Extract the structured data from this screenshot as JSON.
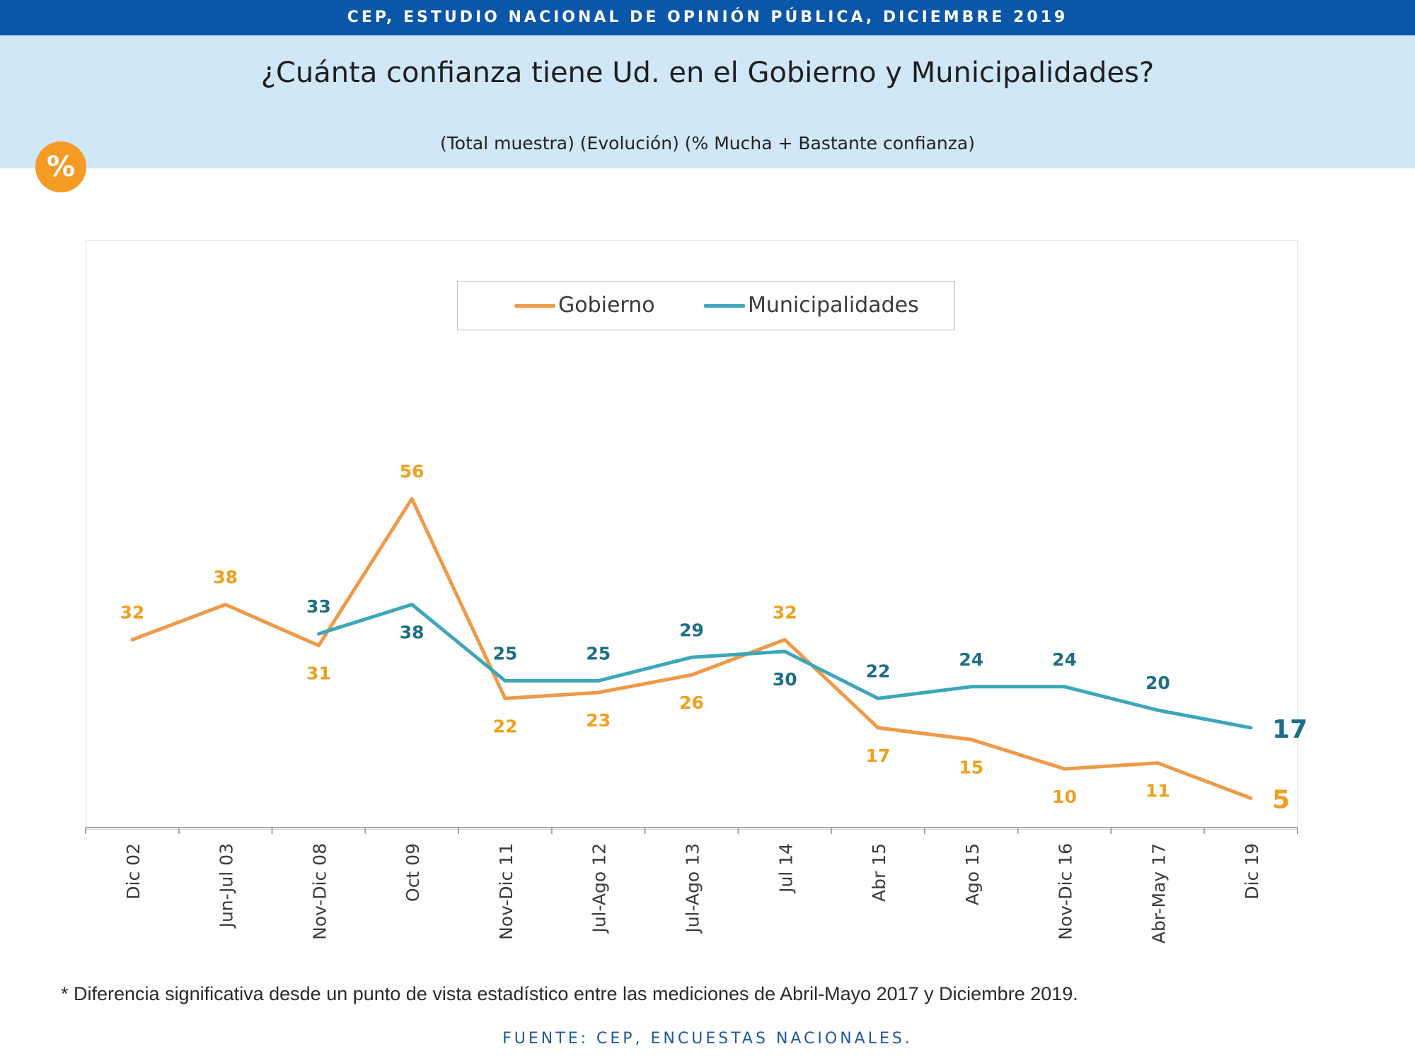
{
  "banner": "CEP, ESTUDIO NACIONAL DE OPINIÓN PÚBLICA, DICIEMBRE 2019",
  "title": "¿Cuánta confianza tiene Ud. en el Gobierno y Municipalidades?",
  "subtitle": "(Total muestra) (Evolución) (% Mucha + Bastante confianza)",
  "badge": "%",
  "footnote": "* Diferencia significativa desde un punto de vista estadístico entre las mediciones de Abril-Mayo 2017 y Diciembre 2019.",
  "source": "FUENTE: CEP, ENCUESTAS NACIONALES.",
  "colors": {
    "gobierno": "#ee9a48",
    "municipalidades": "#3ea6ba",
    "gobierno_label": "#f0a020",
    "municipalidades_label": "#1e6f86",
    "banner": "#0a56a8",
    "header": "#cfe7f7",
    "badge": "#f59a23"
  },
  "chart_data": {
    "type": "line",
    "categories": [
      "Dic 02",
      "Jun-Jul 03",
      "Nov-Dic 08",
      "Oct 09",
      "Nov-Dic 11",
      "Jul-Ago 12",
      "Jul-Ago 13",
      "Jul 14",
      "Abr 15",
      "Ago 15",
      "Nov-Dic 16",
      "Abr-May 17",
      "Dic 19"
    ],
    "series": [
      {
        "name": "Gobierno",
        "values": [
          32,
          38,
          31,
          56,
          22,
          23,
          26,
          32,
          17,
          15,
          10,
          11,
          5
        ]
      },
      {
        "name": "Municipalidades",
        "values": [
          null,
          null,
          33,
          38,
          25,
          25,
          29,
          30,
          22,
          24,
          24,
          20,
          17
        ]
      }
    ],
    "legend_position": "top-center",
    "y_axis_visible": false,
    "grid": false
  }
}
